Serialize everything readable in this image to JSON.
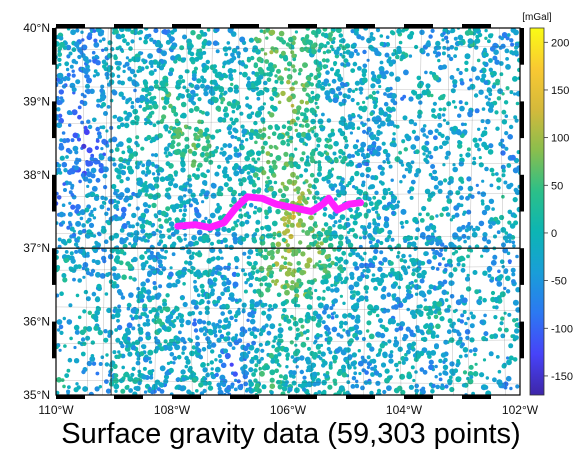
{
  "caption": "Surface gravity data (59,303 points)",
  "map": {
    "lon_range": [
      -110,
      -102
    ],
    "lat_range": [
      35,
      40
    ],
    "lon_ticks": [
      {
        "value": -110,
        "label": "110°W"
      },
      {
        "value": -108,
        "label": "108°W"
      },
      {
        "value": -106,
        "label": "106°W"
      },
      {
        "value": -104,
        "label": "104°W"
      },
      {
        "value": -102,
        "label": "102°W"
      }
    ],
    "lat_ticks": [
      {
        "value": 40,
        "label": "40°N"
      },
      {
        "value": 39,
        "label": "39°N"
      },
      {
        "value": 38,
        "label": "38°N"
      },
      {
        "value": 37,
        "label": "37°N"
      },
      {
        "value": 36,
        "label": "36°N"
      },
      {
        "value": 35,
        "label": "35°N"
      }
    ],
    "state_border_lat": 37,
    "state_border_lon": -109.05,
    "trace_color": "#ff1fff",
    "trace": [
      [
        -107.9,
        37.3
      ],
      [
        -107.6,
        37.32
      ],
      [
        -107.35,
        37.28
      ],
      [
        -107.1,
        37.35
      ],
      [
        -106.9,
        37.55
      ],
      [
        -106.7,
        37.7
      ],
      [
        -106.45,
        37.68
      ],
      [
        -106.2,
        37.6
      ],
      [
        -105.9,
        37.55
      ],
      [
        -105.6,
        37.5
      ],
      [
        -105.4,
        37.6
      ],
      [
        -105.3,
        37.68
      ],
      [
        -105.15,
        37.52
      ],
      [
        -104.95,
        37.6
      ],
      [
        -104.75,
        37.62
      ]
    ]
  },
  "colorbar": {
    "unit": "[mGal]",
    "min": -170,
    "max": 215,
    "ticks": [
      {
        "value": 200,
        "label": "200"
      },
      {
        "value": 150,
        "label": "150"
      },
      {
        "value": 100,
        "label": "100"
      },
      {
        "value": 50,
        "label": "50"
      },
      {
        "value": 0,
        "label": "0"
      },
      {
        "value": -50,
        "label": "-50"
      },
      {
        "value": -100,
        "label": "-100"
      },
      {
        "value": -150,
        "label": "-150"
      }
    ],
    "colormap": [
      "#3e26a8",
      "#4743f8",
      "#2c78f2",
      "#199ed8",
      "#0cb5b4",
      "#2cbf88",
      "#8abe4d",
      "#d4b93b",
      "#f9c932",
      "#f9fb15"
    ]
  }
}
